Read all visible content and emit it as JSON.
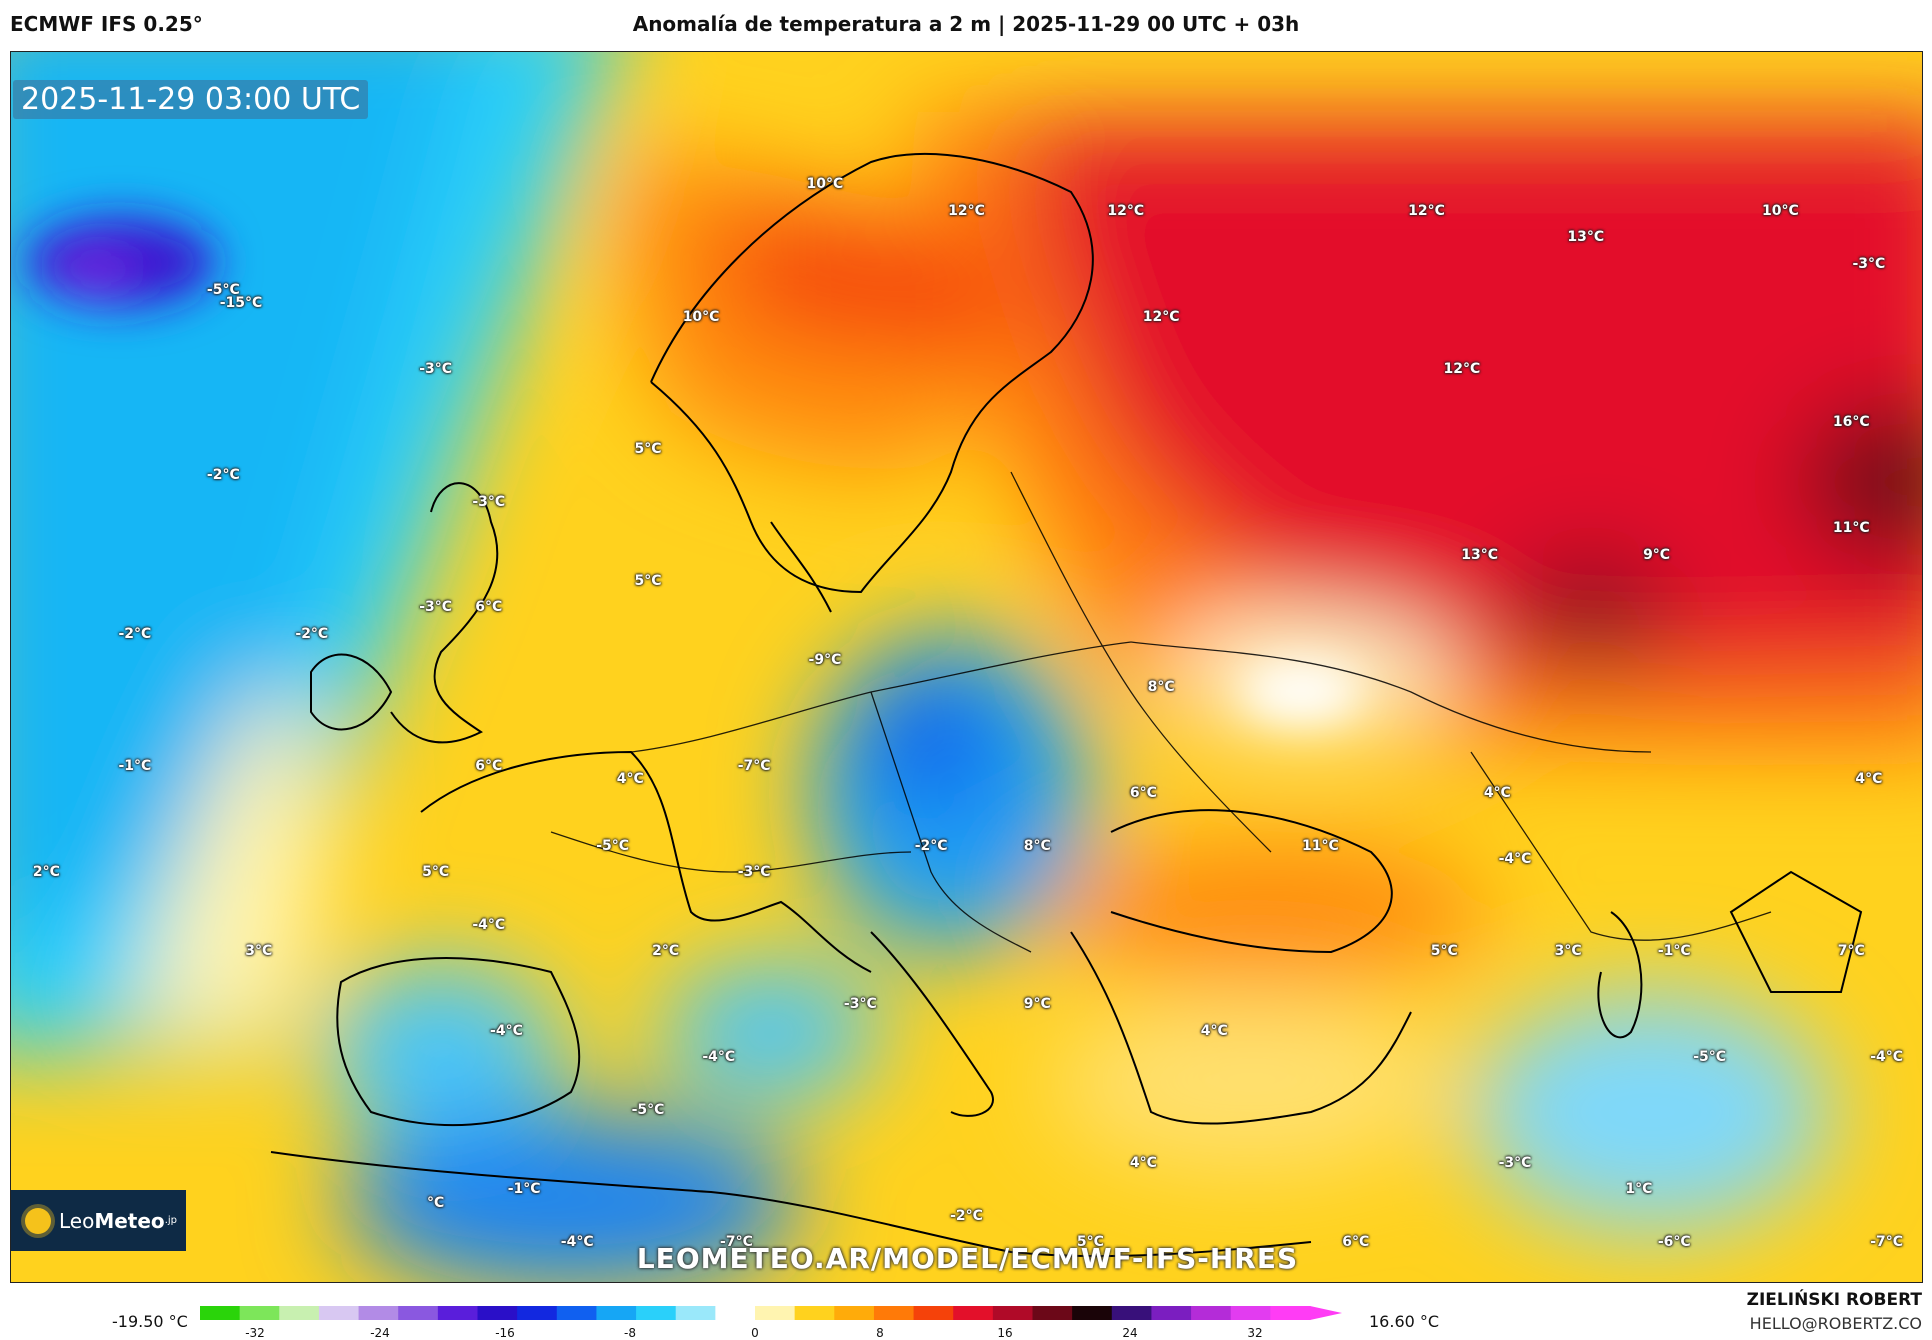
{
  "header": {
    "model": "ECMWF IFS 0.25°",
    "title": "Anomalía de temperatura a 2 m | 2025-11-29 00 UTC + 03h"
  },
  "map": {
    "timestamp": "2025-11-29 03:00 UTC",
    "watermark_url": "LEOMETEO.AR/MODEL/ECMWF-IFS-HRES",
    "logo": {
      "text_light": "Leo",
      "text_bold": "Meteo",
      "suffix": ".jp"
    },
    "labels": [
      {
        "text": "-5°C",
        "lon": -20,
        "lat": 65
      },
      {
        "text": "-15°C",
        "lon": -19,
        "lat": 64.5
      },
      {
        "text": "-3°C",
        "lon": -8,
        "lat": 62
      },
      {
        "text": "-2°C",
        "lon": -20,
        "lat": 58
      },
      {
        "text": "-3°C",
        "lon": -5,
        "lat": 57
      },
      {
        "text": "-3°C",
        "lon": -8,
        "lat": 53
      },
      {
        "text": "-2°C",
        "lon": -25,
        "lat": 52
      },
      {
        "text": "-2°C",
        "lon": -15,
        "lat": 52
      },
      {
        "text": "-1°C",
        "lon": -25,
        "lat": 47
      },
      {
        "text": "2°C",
        "lon": -30,
        "lat": 43
      },
      {
        "text": "3°C",
        "lon": -18,
        "lat": 40
      },
      {
        "text": "10°C",
        "lon": 14,
        "lat": 69
      },
      {
        "text": "12°C",
        "lon": 22,
        "lat": 68
      },
      {
        "text": "12°C",
        "lon": 31,
        "lat": 68
      },
      {
        "text": "12°C",
        "lon": 48,
        "lat": 68
      },
      {
        "text": "13°C",
        "lon": 57,
        "lat": 67
      },
      {
        "text": "10°C",
        "lon": 68,
        "lat": 68
      },
      {
        "text": "-3°C",
        "lon": 73,
        "lat": 66
      },
      {
        "text": "10°C",
        "lon": 7,
        "lat": 64
      },
      {
        "text": "12°C",
        "lon": 33,
        "lat": 64
      },
      {
        "text": "12°C",
        "lon": 50,
        "lat": 62
      },
      {
        "text": "16°C",
        "lon": 72,
        "lat": 60
      },
      {
        "text": "5°C",
        "lon": 4,
        "lat": 59
      },
      {
        "text": "6°C",
        "lon": -5,
        "lat": 53
      },
      {
        "text": "5°C",
        "lon": 4,
        "lat": 54
      },
      {
        "text": "13°C",
        "lon": 51,
        "lat": 55
      },
      {
        "text": "9°C",
        "lon": 61,
        "lat": 55
      },
      {
        "text": "11°C",
        "lon": 72,
        "lat": 56
      },
      {
        "text": "-9°C",
        "lon": 14,
        "lat": 51
      },
      {
        "text": "8°C",
        "lon": 33,
        "lat": 50
      },
      {
        "text": "6°C",
        "lon": -5,
        "lat": 47
      },
      {
        "text": "4°C",
        "lon": 3,
        "lat": 46.5
      },
      {
        "text": "-7°C",
        "lon": 10,
        "lat": 47
      },
      {
        "text": "6°C",
        "lon": 32,
        "lat": 46
      },
      {
        "text": "4°C",
        "lon": 52,
        "lat": 46
      },
      {
        "text": "4°C",
        "lon": 73,
        "lat": 46.5
      },
      {
        "text": "-5°C",
        "lon": 2,
        "lat": 44
      },
      {
        "text": "-3°C",
        "lon": 10,
        "lat": 43
      },
      {
        "text": "-2°C",
        "lon": 20,
        "lat": 44
      },
      {
        "text": "8°C",
        "lon": 26,
        "lat": 44
      },
      {
        "text": "11°C",
        "lon": 42,
        "lat": 44
      },
      {
        "text": "-4°C",
        "lon": 53,
        "lat": 43.5
      },
      {
        "text": "5°C",
        "lon": -8,
        "lat": 43
      },
      {
        "text": "-4°C",
        "lon": -5,
        "lat": 41
      },
      {
        "text": "2°C",
        "lon": 5,
        "lat": 40
      },
      {
        "text": "5°C",
        "lon": 49,
        "lat": 40
      },
      {
        "text": "3°C",
        "lon": 56,
        "lat": 40
      },
      {
        "text": "-1°C",
        "lon": 62,
        "lat": 40
      },
      {
        "text": "7°C",
        "lon": 72,
        "lat": 40
      },
      {
        "text": "-3°C",
        "lon": 16,
        "lat": 38
      },
      {
        "text": "9°C",
        "lon": 26,
        "lat": 38
      },
      {
        "text": "4°C",
        "lon": 36,
        "lat": 37
      },
      {
        "text": "-4°C",
        "lon": -4,
        "lat": 37
      },
      {
        "text": "-4°C",
        "lon": 8,
        "lat": 36
      },
      {
        "text": "-5°C",
        "lon": 64,
        "lat": 36
      },
      {
        "text": "-4°C",
        "lon": 74,
        "lat": 36
      },
      {
        "text": "-5°C",
        "lon": 4,
        "lat": 34
      },
      {
        "text": "4°C",
        "lon": 32,
        "lat": 32
      },
      {
        "text": "-3°C",
        "lon": 53,
        "lat": 32
      },
      {
        "text": "1°C",
        "lon": 60,
        "lat": 31
      },
      {
        "text": "-1°C",
        "lon": -3,
        "lat": 31
      },
      {
        "text": "°C",
        "lon": -8,
        "lat": 30.5
      },
      {
        "text": "-2°C",
        "lon": 22,
        "lat": 30
      },
      {
        "text": "-4°C",
        "lon": 0,
        "lat": 29
      },
      {
        "text": "-7°C",
        "lon": 9,
        "lat": 29
      },
      {
        "text": "5°C",
        "lon": 29,
        "lat": 29
      },
      {
        "text": "6°C",
        "lon": 44,
        "lat": 29
      },
      {
        "text": "-6°C",
        "lon": 62,
        "lat": 29
      },
      {
        "text": "-7°C",
        "lon": 74,
        "lat": 29
      }
    ]
  },
  "legend": {
    "min_label": "-19.50 °C",
    "max_label": "16.60 °C",
    "ticks": [
      "-32",
      "-24",
      "-16",
      "-8",
      "0",
      "8",
      "16",
      "24",
      "32"
    ],
    "tick_values": [
      -32,
      -24,
      -16,
      -8,
      0,
      8,
      16,
      24,
      32
    ],
    "range": [
      -32,
      32
    ],
    "colors": [
      "#2ad40a",
      "#7de65a",
      "#c8f0b0",
      "#d8c8f2",
      "#b28be6",
      "#8a58e0",
      "#5a1edb",
      "#2a0fc8",
      "#1228e0",
      "#1060f0",
      "#16a6f5",
      "#2ad0fa",
      "#9ae8fa",
      "#ffffff",
      "#fff4b0",
      "#ffd21e",
      "#ffab0a",
      "#ff7a08",
      "#f5420a",
      "#e3102a",
      "#b00a28",
      "#6c0818",
      "#1a0408",
      "#38107a",
      "#7b1ec0",
      "#b42cd8",
      "#e23cf0",
      "#ff3cf5"
    ]
  },
  "credit": {
    "name": "ZIELIŃSKI ROBERT",
    "email": "HELLO@ROBERTZ.CO"
  }
}
